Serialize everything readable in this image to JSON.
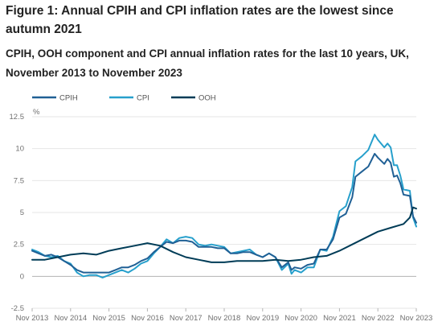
{
  "figure": {
    "title": "Figure 1: Annual CPIH and CPI inflation rates are the lowest since autumn 2021",
    "subtitle": "CPIH, OOH component and CPI annual inflation rates for the last 10 years, UK, November 2013 to November 2023"
  },
  "chart_data": {
    "type": "line",
    "title": "CPIH, OOH component and CPI annual inflation rates for the last 10 years, UK, November 2013 to November 2023",
    "ylabel": "%",
    "xlabel": "",
    "ylim": [
      -2.5,
      12.5
    ],
    "yticks": [
      -2.5,
      0,
      2.5,
      5,
      7.5,
      10,
      12.5
    ],
    "ytick_labels": [
      "-2.5",
      "0",
      "2.5",
      "5",
      "7.5",
      "10",
      "12.5"
    ],
    "xticks": [
      "Nov 2013",
      "Nov 2014",
      "Nov 2015",
      "Nov 2016",
      "Nov 2017",
      "Nov 2018",
      "Nov 2019",
      "Nov 2020",
      "Nov 2021",
      "Nov 2022",
      "Nov 2023"
    ],
    "grid": true,
    "legend_position": "top-left",
    "series": [
      {
        "name": "CPIH",
        "color": "#206095",
        "points": [
          [
            "Nov 2013",
            2.0
          ],
          [
            "Jan 2014",
            1.8
          ],
          [
            "Mar 2014",
            1.6
          ],
          [
            "May 2014",
            1.7
          ],
          [
            "Jul 2014",
            1.5
          ],
          [
            "Sep 2014",
            1.2
          ],
          [
            "Nov 2014",
            0.9
          ],
          [
            "Jan 2015",
            0.5
          ],
          [
            "Mar 2015",
            0.3
          ],
          [
            "May 2015",
            0.3
          ],
          [
            "Jul 2015",
            0.3
          ],
          [
            "Sep 2015",
            0.3
          ],
          [
            "Nov 2015",
            0.3
          ],
          [
            "Jan 2016",
            0.5
          ],
          [
            "Mar 2016",
            0.7
          ],
          [
            "May 2016",
            0.7
          ],
          [
            "Jul 2016",
            0.9
          ],
          [
            "Sep 2016",
            1.2
          ],
          [
            "Nov 2016",
            1.4
          ],
          [
            "Jan 2017",
            1.9
          ],
          [
            "Mar 2017",
            2.3
          ],
          [
            "May 2017",
            2.7
          ],
          [
            "Jul 2017",
            2.6
          ],
          [
            "Sep 2017",
            2.8
          ],
          [
            "Nov 2017",
            2.8
          ],
          [
            "Jan 2018",
            2.7
          ],
          [
            "Mar 2018",
            2.3
          ],
          [
            "May 2018",
            2.3
          ],
          [
            "Jul 2018",
            2.3
          ],
          [
            "Sep 2018",
            2.2
          ],
          [
            "Nov 2018",
            2.2
          ],
          [
            "Jan 2019",
            1.8
          ],
          [
            "Mar 2019",
            1.8
          ],
          [
            "May 2019",
            1.9
          ],
          [
            "Jul 2019",
            1.9
          ],
          [
            "Sep 2019",
            1.7
          ],
          [
            "Nov 2019",
            1.5
          ],
          [
            "Jan 2020",
            1.8
          ],
          [
            "Mar 2020",
            1.5
          ],
          [
            "May 2020",
            0.7
          ],
          [
            "Jul 2020",
            1.1
          ],
          [
            "Aug 2020",
            0.5
          ],
          [
            "Sep 2020",
            0.7
          ],
          [
            "Nov 2020",
            0.6
          ],
          [
            "Jan 2021",
            0.9
          ],
          [
            "Mar 2021",
            1.0
          ],
          [
            "May 2021",
            2.1
          ],
          [
            "Jul 2021",
            2.1
          ],
          [
            "Sep 2021",
            2.9
          ],
          [
            "Nov 2021",
            4.6
          ],
          [
            "Jan 2022",
            4.9
          ],
          [
            "Mar 2022",
            6.2
          ],
          [
            "Apr 2022",
            7.8
          ],
          [
            "Jun 2022",
            8.2
          ],
          [
            "Aug 2022",
            8.6
          ],
          [
            "Oct 2022",
            9.6
          ],
          [
            "Nov 2022",
            9.3
          ],
          [
            "Jan 2023",
            8.8
          ],
          [
            "Feb 2023",
            9.2
          ],
          [
            "Mar 2023",
            8.9
          ],
          [
            "Apr 2023",
            7.8
          ],
          [
            "May 2023",
            7.9
          ],
          [
            "Jun 2023",
            7.3
          ],
          [
            "Jul 2023",
            6.4
          ],
          [
            "Sep 2023",
            6.3
          ],
          [
            "Oct 2023",
            4.7
          ],
          [
            "Nov 2023",
            4.2
          ]
        ]
      },
      {
        "name": "CPI",
        "color": "#27a0cc",
        "points": [
          [
            "Nov 2013",
            2.1
          ],
          [
            "Jan 2014",
            1.9
          ],
          [
            "Mar 2014",
            1.6
          ],
          [
            "May 2014",
            1.5
          ],
          [
            "Jul 2014",
            1.6
          ],
          [
            "Sep 2014",
            1.2
          ],
          [
            "Nov 2014",
            1.0
          ],
          [
            "Jan 2015",
            0.3
          ],
          [
            "Mar 2015",
            0.0
          ],
          [
            "May 2015",
            0.1
          ],
          [
            "Jul 2015",
            0.1
          ],
          [
            "Sep 2015",
            -0.1
          ],
          [
            "Nov 2015",
            0.1
          ],
          [
            "Jan 2016",
            0.3
          ],
          [
            "Mar 2016",
            0.5
          ],
          [
            "May 2016",
            0.3
          ],
          [
            "Jul 2016",
            0.6
          ],
          [
            "Sep 2016",
            1.0
          ],
          [
            "Nov 2016",
            1.2
          ],
          [
            "Jan 2017",
            1.8
          ],
          [
            "Mar 2017",
            2.3
          ],
          [
            "May 2017",
            2.9
          ],
          [
            "Jul 2017",
            2.6
          ],
          [
            "Sep 2017",
            3.0
          ],
          [
            "Nov 2017",
            3.1
          ],
          [
            "Jan 2018",
            3.0
          ],
          [
            "Mar 2018",
            2.5
          ],
          [
            "May 2018",
            2.4
          ],
          [
            "Jul 2018",
            2.5
          ],
          [
            "Sep 2018",
            2.4
          ],
          [
            "Nov 2018",
            2.3
          ],
          [
            "Jan 2019",
            1.8
          ],
          [
            "Mar 2019",
            1.9
          ],
          [
            "May 2019",
            2.0
          ],
          [
            "Jul 2019",
            2.1
          ],
          [
            "Sep 2019",
            1.7
          ],
          [
            "Nov 2019",
            1.5
          ],
          [
            "Jan 2020",
            1.8
          ],
          [
            "Mar 2020",
            1.5
          ],
          [
            "May 2020",
            0.5
          ],
          [
            "Jul 2020",
            1.0
          ],
          [
            "Aug 2020",
            0.2
          ],
          [
            "Sep 2020",
            0.5
          ],
          [
            "Nov 2020",
            0.3
          ],
          [
            "Jan 2021",
            0.7
          ],
          [
            "Mar 2021",
            0.7
          ],
          [
            "May 2021",
            2.1
          ],
          [
            "Jul 2021",
            2.0
          ],
          [
            "Sep 2021",
            3.1
          ],
          [
            "Nov 2021",
            5.1
          ],
          [
            "Jan 2022",
            5.5
          ],
          [
            "Mar 2022",
            7.0
          ],
          [
            "Apr 2022",
            9.0
          ],
          [
            "Jun 2022",
            9.4
          ],
          [
            "Aug 2022",
            9.9
          ],
          [
            "Oct 2022",
            11.1
          ],
          [
            "Nov 2022",
            10.7
          ],
          [
            "Jan 2023",
            10.1
          ],
          [
            "Feb 2023",
            10.4
          ],
          [
            "Mar 2023",
            10.1
          ],
          [
            "Apr 2023",
            8.7
          ],
          [
            "May 2023",
            8.7
          ],
          [
            "Jun 2023",
            7.9
          ],
          [
            "Jul 2023",
            6.8
          ],
          [
            "Sep 2023",
            6.7
          ],
          [
            "Oct 2023",
            4.6
          ],
          [
            "Nov 2023",
            3.9
          ]
        ]
      },
      {
        "name": "OOH",
        "color": "#003c57",
        "points": [
          [
            "Nov 2013",
            1.3
          ],
          [
            "Mar 2014",
            1.3
          ],
          [
            "Jul 2014",
            1.5
          ],
          [
            "Nov 2014",
            1.7
          ],
          [
            "Mar 2015",
            1.8
          ],
          [
            "Jul 2015",
            1.7
          ],
          [
            "Nov 2015",
            2.0
          ],
          [
            "Mar 2016",
            2.2
          ],
          [
            "Jul 2016",
            2.4
          ],
          [
            "Nov 2016",
            2.6
          ],
          [
            "Mar 2017",
            2.4
          ],
          [
            "Jul 2017",
            1.9
          ],
          [
            "Nov 2017",
            1.5
          ],
          [
            "Mar 2018",
            1.3
          ],
          [
            "Jul 2018",
            1.1
          ],
          [
            "Nov 2018",
            1.1
          ],
          [
            "Mar 2019",
            1.2
          ],
          [
            "Jul 2019",
            1.2
          ],
          [
            "Nov 2019",
            1.2
          ],
          [
            "Mar 2020",
            1.3
          ],
          [
            "Jul 2020",
            1.2
          ],
          [
            "Nov 2020",
            1.3
          ],
          [
            "Mar 2021",
            1.5
          ],
          [
            "Jul 2021",
            1.6
          ],
          [
            "Nov 2021",
            2.0
          ],
          [
            "Mar 2022",
            2.5
          ],
          [
            "Jul 2022",
            3.0
          ],
          [
            "Nov 2022",
            3.5
          ],
          [
            "Mar 2023",
            3.8
          ],
          [
            "Jul 2023",
            4.1
          ],
          [
            "Sep 2023",
            4.6
          ],
          [
            "Oct 2023",
            5.4
          ],
          [
            "Nov 2023",
            5.3
          ]
        ]
      }
    ]
  }
}
